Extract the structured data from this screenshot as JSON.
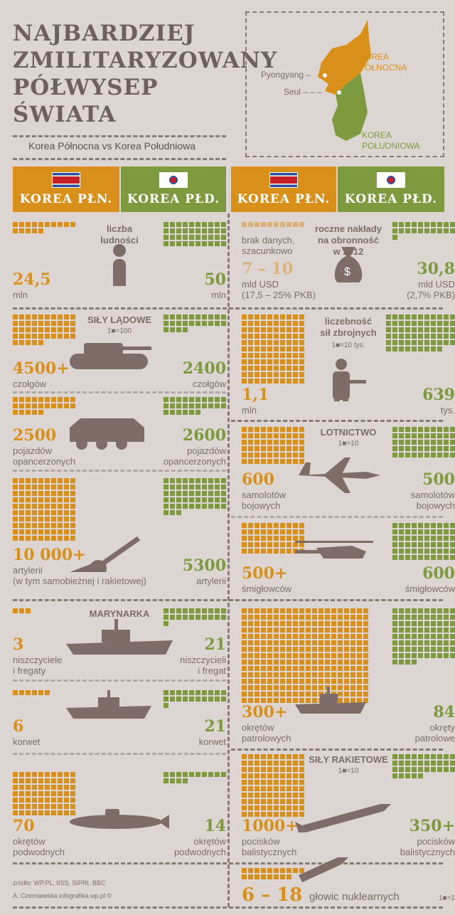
{
  "header": {
    "title": [
      "NAJBARDZIEJ",
      "ZMILITARYZOWANY",
      "PÓŁWYSEP",
      "ŚWIATA"
    ],
    "subtitle": "Korea Północna vs Korea Południowa"
  },
  "map": {
    "north_label": "KOREA\nPÓŁNOCNA",
    "south_label": "KOREA\nPOŁUDNIOWA",
    "pyongyang": "Pyongyang –",
    "seoul": "Seul – – –"
  },
  "tabs": [
    "KOREA PŁN.",
    "KOREA PŁD.",
    "KOREA PŁN.",
    "KOREA PŁD."
  ],
  "colors": {
    "north": "#d9901a",
    "south": "#7d9a3e",
    "icon": "#7d6c68",
    "background": "#dcd5d2"
  },
  "stats": [
    {
      "id": "population",
      "label": "liczba\nludności",
      "icon": "person-icon",
      "nk": {
        "value": "24,5",
        "unit": "mln",
        "squares": 15
      },
      "sk": {
        "value": "50",
        "unit": "mln",
        "squares": 40
      }
    },
    {
      "id": "defense-budget",
      "label": "roczne nakłady\nna obronność\nw 2012",
      "icon": "money-bag-icon",
      "nk": {
        "note": "brak danych,\nszacunkowo",
        "value": "7 – 10",
        "unit": "mld USD\n(17,5 – 25% PKB)",
        "squares": 10
      },
      "sk": {
        "value": "30,8",
        "unit": "mld USD\n(2,7% PKB)",
        "squares": 21
      }
    },
    {
      "id": "tanks",
      "heading": "SIŁY LĄDOWE",
      "scale": "1■=100",
      "icon": "tank-icon",
      "nk": {
        "value": "4500+",
        "unit": "czołgów",
        "squares": 45
      },
      "sk": {
        "value": "2400",
        "unit": "czołgów",
        "squares": 24
      }
    },
    {
      "id": "apc",
      "icon": "armored-vehicle-icon",
      "nk": {
        "value": "2500",
        "unit": "pojazdów\nopancerzonych",
        "squares": 25
      },
      "sk": {
        "value": "2600",
        "unit": "pojazdów\nopancerzonych",
        "squares": 26
      }
    },
    {
      "id": "artillery",
      "icon": "howitzer-icon",
      "nk": {
        "value": "10 000+",
        "unit": "artylerii\n(w tym samobieżnej i rakietowej)",
        "squares": 100
      },
      "sk": {
        "value": "5300",
        "unit": "artylerii",
        "squares": 53
      }
    },
    {
      "id": "personnel",
      "label": "liczebność\nsił zbrojnych",
      "scale": "1■=10 tys.",
      "icon": "soldier-icon",
      "nk": {
        "value": "1,1",
        "unit": "mln",
        "squares": 110
      },
      "sk": {
        "value": "639",
        "unit": "tys.",
        "squares": 64
      }
    },
    {
      "id": "aircraft",
      "heading": "LOTNICTWO",
      "scale": "1■=10",
      "icon": "fighter-jet-icon",
      "nk": {
        "value": "600",
        "unit": "samolotów\nbojowych",
        "squares": 60
      },
      "sk": {
        "value": "500",
        "unit": "samolotów\nbojowych",
        "squares": 50
      }
    },
    {
      "id": "helicopters",
      "icon": "helicopter-icon",
      "nk": {
        "value": "500+",
        "unit": "śmigłowców",
        "squares": 50
      },
      "sk": {
        "value": "600",
        "unit": "śmigłowców",
        "squares": 60
      }
    },
    {
      "id": "destroyers",
      "heading": "MARYNARKA",
      "icon": "warship-icon",
      "nk": {
        "value": "3",
        "unit": "niszczyciele\ni fregaty",
        "squares": 3
      },
      "sk": {
        "value": "21",
        "unit": "niszczycieli\ni fregat",
        "squares": 21
      }
    },
    {
      "id": "corvettes",
      "icon": "corvette-icon",
      "nk": {
        "value": "6",
        "unit": "korwet",
        "squares": 6
      },
      "sk": {
        "value": "21",
        "unit": "korwet",
        "squares": 21
      }
    },
    {
      "id": "submarines",
      "icon": "submarine-icon",
      "nk": {
        "value": "70",
        "unit": "okrętów\npodwodnych",
        "squares": 70
      },
      "sk": {
        "value": "14",
        "unit": "okrętów\npodwodnych",
        "squares": 14
      }
    },
    {
      "id": "patrol-ships",
      "icon": "patrol-boat-icon",
      "nk": {
        "value": "300+",
        "unit": "okrętów\npatrolowych",
        "squares": 300
      },
      "sk": {
        "value": "84",
        "unit": "okręty\npatrolowe",
        "squares": 84
      }
    },
    {
      "id": "missiles",
      "heading": "SIŁY RAKIETOWE",
      "scale": "1■=10",
      "icon": "missile-icon",
      "nk": {
        "value": "1000+",
        "unit": "pocisków\nbalistycznych",
        "squares": 100
      },
      "sk": {
        "value": "350+",
        "unit": "pocisków\nbalistycznych",
        "squares": 35
      }
    },
    {
      "id": "nuclear-warheads",
      "scale": "1■=1",
      "icon": "warhead-icon",
      "nk": {
        "value": "6 – 18",
        "unit": "głowic nuklearnych",
        "squares": 18
      }
    }
  ],
  "footer": {
    "source": "źródło: WP.PL, IISS, SIPRI, BBC",
    "author": "A. Czerniawska infografika.wp.pl ©"
  }
}
